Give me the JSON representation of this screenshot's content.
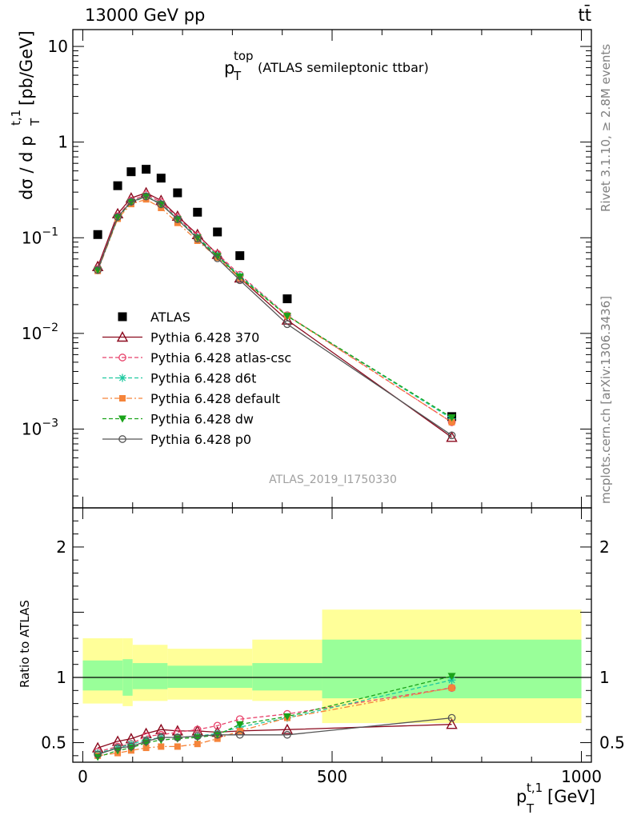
{
  "header": {
    "energy_label": "13000 GeV pp",
    "process_label": "tt̄"
  },
  "side_labels": {
    "rivet": "Rivet 3.1.10, ≥ 2.8M events",
    "mcplots": "mcplots.cern.ch [arXiv:1306.3436]"
  },
  "analysis_label": "ATLAS_2019_I1750330",
  "colors": {
    "atlas": "#000000",
    "p370": "#8b0a1e",
    "atlas_csc": "#e8426a",
    "d6t": "#1fc9a0",
    "default": "#f5843a",
    "dw": "#1aa31a",
    "p0": "#555555",
    "band_outer": "#ffff99",
    "band_inner": "#99ff99"
  },
  "chart_data": [
    {
      "type": "line",
      "title_main": "p",
      "title_sup": "top",
      "title_sub": "T",
      "title_rest": "(ATLAS semileptonic ttbar)",
      "ylabel_main": "dσ / d p",
      "ylabel_sup": "t,1",
      "ylabel_sub": "T",
      "ylabel_rest": "[pb/GeV]",
      "xlim": [
        -20,
        1020
      ],
      "ylim": [
        0.00015,
        15
      ],
      "yscale": "log",
      "yticks": [
        {
          "value": 10,
          "base": "10",
          "exp": ""
        },
        {
          "value": 1,
          "base": "1",
          "exp": ""
        },
        {
          "value": 0.1,
          "base": "10",
          "exp": "−1"
        },
        {
          "value": 0.01,
          "base": "10",
          "exp": "−2"
        },
        {
          "value": 0.001,
          "base": "10",
          "exp": "−3"
        }
      ],
      "legend_position": "center-left",
      "x": [
        30,
        70,
        97,
        127,
        157,
        190,
        230,
        270,
        315,
        410,
        740
      ],
      "series": [
        {
          "name": "ATLAS",
          "key": "atlas",
          "marker": "square",
          "line": "none",
          "values": [
            0.108,
            0.35,
            0.49,
            0.52,
            0.42,
            0.295,
            0.185,
            0.115,
            0.065,
            0.023,
            0.00135
          ]
        },
        {
          "name": "Pythia 6.428 370",
          "key": "p370",
          "marker": "triangle-open",
          "line": "solid",
          "values": [
            0.05,
            0.178,
            0.26,
            0.295,
            0.245,
            0.168,
            0.108,
            0.067,
            0.038,
            0.0138,
            0.00082
          ]
        },
        {
          "name": "Pythia 6.428 atlas-csc",
          "key": "atlas_csc",
          "marker": "circle-open",
          "line": "dashed",
          "values": [
            0.047,
            0.168,
            0.245,
            0.283,
            0.235,
            0.163,
            0.105,
            0.068,
            0.041,
            0.0155,
            0.00118
          ]
        },
        {
          "name": "Pythia 6.428 d6t",
          "key": "d6t",
          "marker": "asterisk",
          "line": "dashed",
          "values": [
            0.046,
            0.163,
            0.238,
            0.272,
            0.226,
            0.158,
            0.101,
            0.065,
            0.04,
            0.0153,
            0.00128
          ]
        },
        {
          "name": "Pythia 6.428 default",
          "key": "default",
          "marker": "square-small",
          "line": "dashdot",
          "values": [
            0.045,
            0.158,
            0.225,
            0.252,
            0.205,
            0.143,
            0.093,
            0.062,
            0.038,
            0.0153,
            0.00118
          ]
        },
        {
          "name": "Pythia 6.428 dw",
          "key": "dw",
          "marker": "triangle-down",
          "line": "dashed",
          "values": [
            0.046,
            0.163,
            0.235,
            0.27,
            0.224,
            0.156,
            0.1,
            0.064,
            0.039,
            0.0152,
            0.00132
          ]
        },
        {
          "name": "Pythia 6.428 p0",
          "key": "p0",
          "marker": "circle-open",
          "line": "solid",
          "values": [
            0.046,
            0.165,
            0.238,
            0.27,
            0.224,
            0.156,
            0.098,
            0.061,
            0.036,
            0.0125,
            0.00086
          ]
        }
      ]
    },
    {
      "type": "line",
      "ylabel": "Ratio to ATLAS",
      "xlabel_main": "p",
      "xlabel_sup": "t,1",
      "xlabel_sub": "T",
      "xlabel_rest": "[GeV]",
      "xlim": [
        -20,
        1020
      ],
      "ylim": [
        0.35,
        2.3
      ],
      "yticks": [
        {
          "value": 0.5,
          "label": "0.5"
        },
        {
          "value": 1,
          "label": "1"
        },
        {
          "value": 2,
          "label": "2"
        }
      ],
      "xticks": [
        {
          "value": 0,
          "label": "0"
        },
        {
          "value": 500,
          "label": "500"
        },
        {
          "value": 1000,
          "label": "1000"
        }
      ],
      "reference_value": 1,
      "bands": [
        {
          "x0": 0,
          "x1": 80,
          "outer": [
            0.8,
            1.3
          ],
          "inner": [
            0.9,
            1.13
          ]
        },
        {
          "x0": 80,
          "x1": 100,
          "outer": [
            0.78,
            1.3
          ],
          "inner": [
            0.86,
            1.14
          ]
        },
        {
          "x0": 100,
          "x1": 170,
          "outer": [
            0.82,
            1.25
          ],
          "inner": [
            0.91,
            1.11
          ]
        },
        {
          "x0": 170,
          "x1": 340,
          "outer": [
            0.83,
            1.22
          ],
          "inner": [
            0.92,
            1.09
          ]
        },
        {
          "x0": 340,
          "x1": 480,
          "outer": [
            0.82,
            1.29
          ],
          "inner": [
            0.9,
            1.11
          ]
        },
        {
          "x0": 480,
          "x1": 1000,
          "outer": [
            0.65,
            1.52
          ],
          "inner": [
            0.84,
            1.29
          ]
        }
      ],
      "x": [
        30,
        70,
        97,
        127,
        157,
        190,
        230,
        270,
        315,
        410,
        740
      ],
      "series": [
        {
          "key": "p370",
          "marker": "triangle-open",
          "line": "solid",
          "values": [
            0.46,
            0.51,
            0.53,
            0.57,
            0.6,
            0.59,
            0.59,
            0.58,
            0.59,
            0.6,
            0.64
          ]
        },
        {
          "key": "atlas_csc",
          "marker": "circle-open",
          "line": "dashed",
          "values": [
            0.43,
            0.47,
            0.49,
            0.55,
            0.56,
            0.58,
            0.6,
            0.63,
            0.68,
            0.72,
            0.92
          ]
        },
        {
          "key": "d6t",
          "marker": "asterisk",
          "line": "dashed",
          "values": [
            0.42,
            0.46,
            0.49,
            0.52,
            0.54,
            0.54,
            0.55,
            0.57,
            0.62,
            0.69,
            0.98
          ]
        },
        {
          "key": "default",
          "marker": "square-small",
          "line": "dashdot",
          "values": [
            0.4,
            0.42,
            0.44,
            0.46,
            0.47,
            0.47,
            0.49,
            0.53,
            0.59,
            0.69,
            0.92
          ]
        },
        {
          "key": "dw",
          "marker": "triangle-down",
          "line": "dashed",
          "values": [
            0.39,
            0.44,
            0.46,
            0.5,
            0.52,
            0.53,
            0.54,
            0.56,
            0.64,
            0.7,
            1.01
          ]
        },
        {
          "key": "p0",
          "marker": "circle-open",
          "line": "solid",
          "values": [
            0.41,
            0.46,
            0.47,
            0.51,
            0.54,
            0.54,
            0.55,
            0.56,
            0.56,
            0.56,
            0.69
          ]
        }
      ]
    }
  ]
}
